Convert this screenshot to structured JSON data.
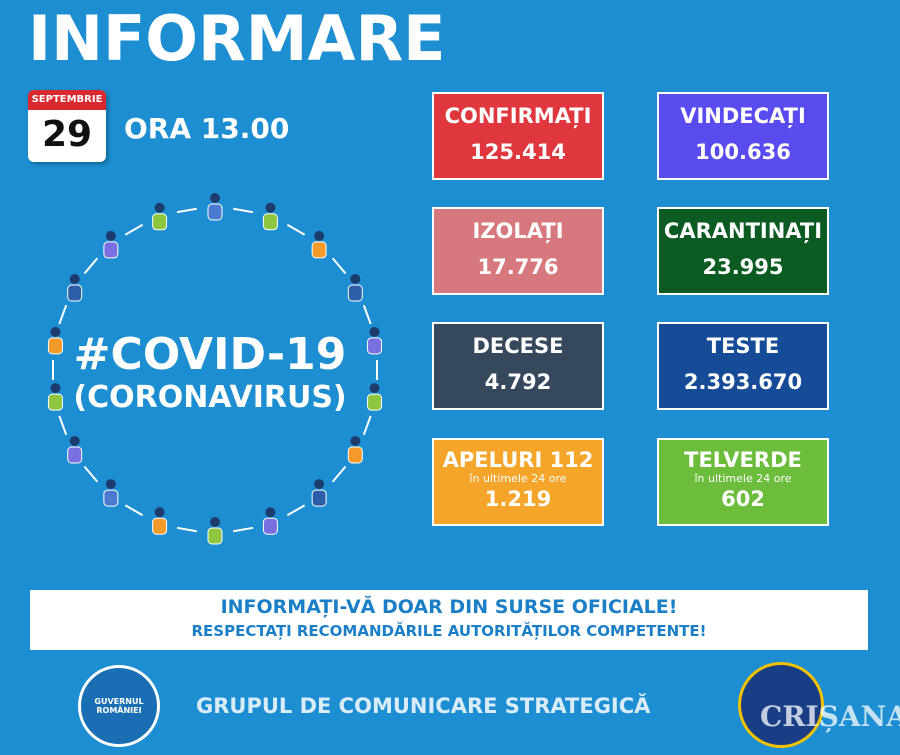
{
  "header": {
    "title": "INFORMARE",
    "month": "SEPTEMBRIE",
    "day": "29",
    "time": "ORA 13.00"
  },
  "hashtag": {
    "title": "#COVID-19",
    "subtitle": "(CORONAVIRUS)"
  },
  "boxes": [
    {
      "label": "CONFIRMAȚI",
      "value": "125.414",
      "color": "#e0373f"
    },
    {
      "label": "VINDECAȚI",
      "value": "100.636",
      "color": "#5a4bee"
    },
    {
      "label": "IZOLAȚI",
      "value": "17.776",
      "color": "#d6787d"
    },
    {
      "label": "CARANTINAȚI",
      "value": "23.995",
      "color": "#0b5b22"
    },
    {
      "label": "DECESE",
      "value": "4.792",
      "color": "#36485b"
    },
    {
      "label": "TESTE",
      "value": "2.393.670",
      "color": "#164b98"
    },
    {
      "label": "APELURI 112",
      "note": "în ultimele 24 ore",
      "value": "1.219",
      "color": "#f4a52a"
    },
    {
      "label": "TELVERDE",
      "note": "în ultimele 24 ore",
      "value": "602",
      "color": "#6cbd3c"
    }
  ],
  "banner": {
    "line1": "INFORMAȚI-VĂ DOAR DIN SURSE OFICIALE!",
    "line2": "RESPECTAȚI RECOMANDĂRILE AUTORITĂȚILOR COMPETENTE!"
  },
  "footer": {
    "text": "GRUPUL DE COMUNICARE STRATEGICĂ",
    "logo_left": "GUVERNUL ROMÂNIEI",
    "watermark": "CRIȘANA"
  }
}
